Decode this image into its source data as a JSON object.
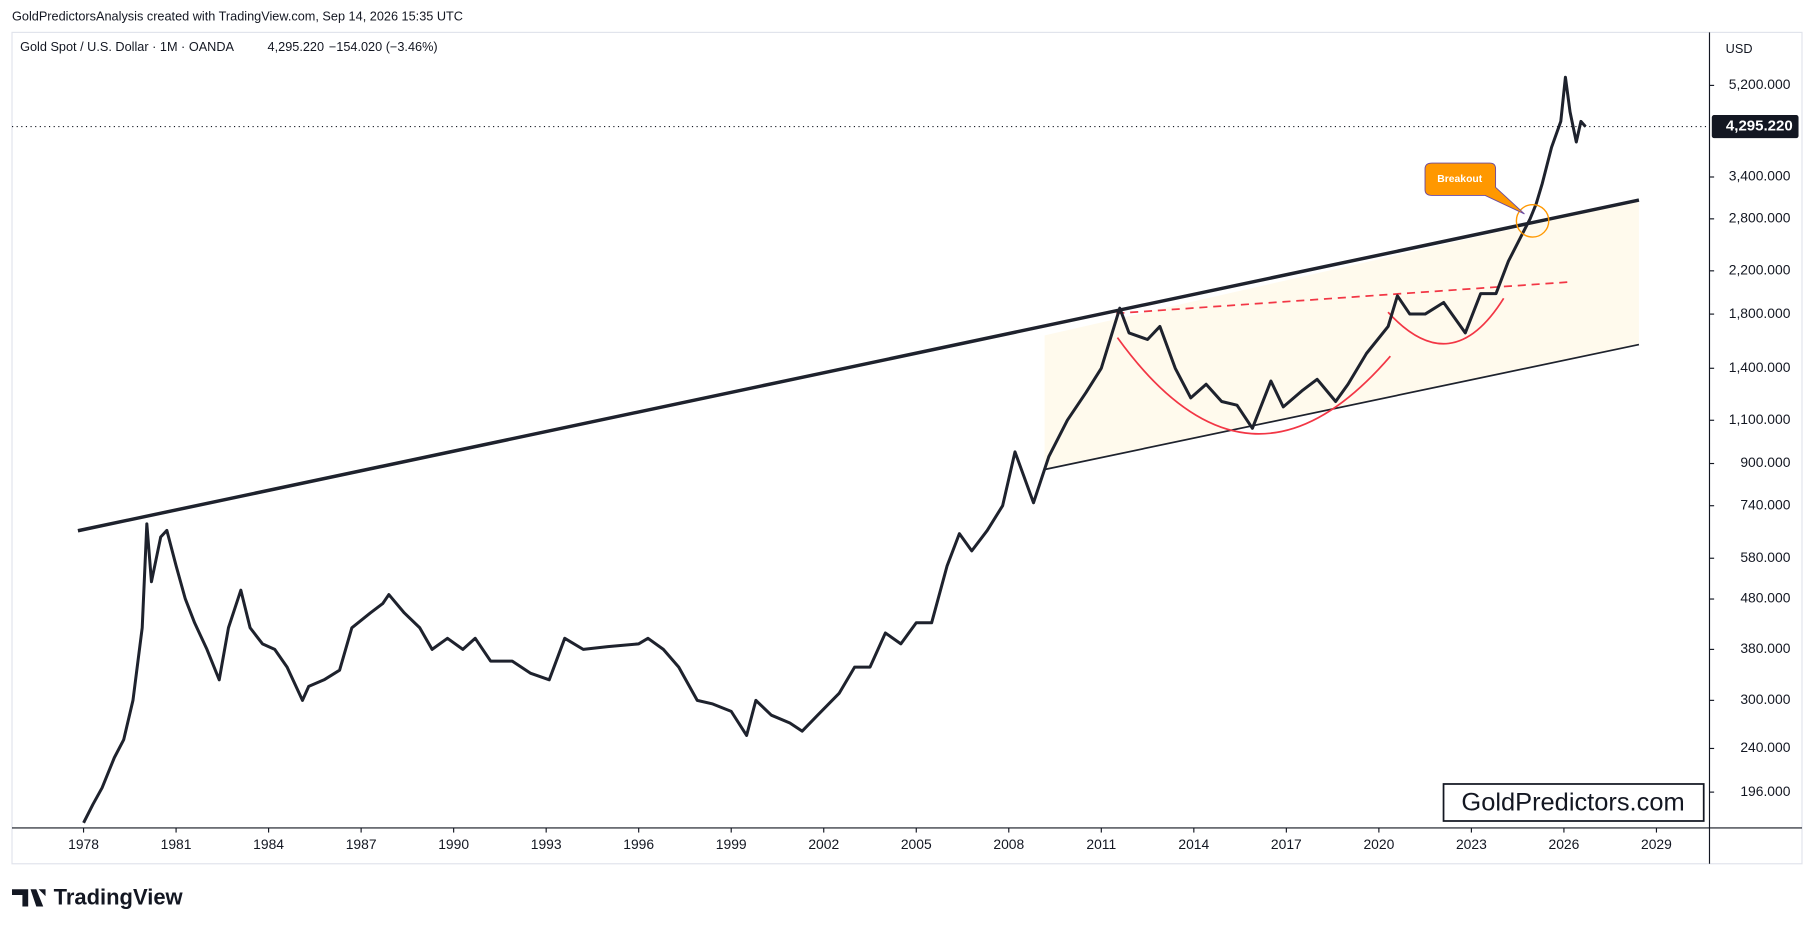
{
  "chart_data": {
    "type": "line",
    "attribution": "GoldPredictorsAnalysis created with TradingView.com, Sep 14, 2026 15:35 UTC",
    "title": "Gold Spot / U.S. Dollar · 1M · OANDA",
    "last_price": {
      "value": 4295.22,
      "label": "4,295.220"
    },
    "change": "−154.020 (−3.46%)",
    "currency": "USD",
    "annotation": "Breakout",
    "watermark": "GoldPredictors.com",
    "brand": "TradingView",
    "color": "#1e222d",
    "log_scale": true,
    "x": [
      1978.0,
      1978.3,
      1978.6,
      1979.0,
      1979.3,
      1979.6,
      1979.9,
      1980.05,
      1980.2,
      1980.5,
      1980.7,
      1981.0,
      1981.3,
      1981.6,
      1982.0,
      1982.4,
      1982.7,
      1983.1,
      1983.4,
      1983.8,
      1984.2,
      1984.6,
      1985.1,
      1985.3,
      1985.8,
      1986.3,
      1986.7,
      1987.3,
      1987.7,
      1987.9,
      1988.4,
      1988.9,
      1989.3,
      1989.8,
      1990.3,
      1990.7,
      1991.2,
      1991.9,
      1992.5,
      1993.1,
      1993.6,
      1994.2,
      1995.0,
      1996.0,
      1996.3,
      1996.8,
      1997.3,
      1997.9,
      1998.4,
      1999.0,
      1999.5,
      1999.8,
      2000.3,
      2000.9,
      2001.3,
      2001.8,
      2002.5,
      2003.0,
      2003.5,
      2004.0,
      2004.5,
      2005.0,
      2005.5,
      2006.0,
      2006.4,
      2006.8,
      2007.3,
      2007.8,
      2008.2,
      2008.8,
      2009.3,
      2009.9,
      2010.5,
      2011.0,
      2011.6,
      2011.9,
      2012.5,
      2012.9,
      2013.4,
      2013.9,
      2014.4,
      2014.9,
      2015.4,
      2015.9,
      2016.5,
      2016.9,
      2017.5,
      2018.0,
      2018.6,
      2019.0,
      2019.6,
      2020.3,
      2020.6,
      2021.0,
      2021.5,
      2022.1,
      2022.8,
      2023.3,
      2023.8,
      2024.2,
      2024.9,
      2025.1,
      2025.3,
      2025.6,
      2025.9,
      2026.05,
      2026.2,
      2026.4,
      2026.55,
      2026.7
    ],
    "values": [
      170,
      185,
      200,
      230,
      250,
      300,
      420,
      680,
      520,
      640,
      660,
      560,
      480,
      430,
      380,
      330,
      420,
      500,
      420,
      390,
      380,
      350,
      300,
      320,
      330,
      345,
      420,
      450,
      470,
      490,
      450,
      420,
      380,
      400,
      380,
      400,
      360,
      360,
      340,
      330,
      400,
      380,
      385,
      390,
      400,
      380,
      350,
      300,
      295,
      285,
      255,
      300,
      280,
      270,
      260,
      280,
      310,
      350,
      350,
      410,
      390,
      430,
      430,
      560,
      650,
      600,
      660,
      740,
      950,
      750,
      930,
      1100,
      1250,
      1400,
      1850,
      1650,
      1600,
      1700,
      1400,
      1220,
      1300,
      1200,
      1180,
      1060,
      1320,
      1170,
      1260,
      1330,
      1200,
      1300,
      1500,
      1700,
      1960,
      1800,
      1800,
      1900,
      1650,
      1980,
      1980,
      2300,
      2800,
      3000,
      3300,
      3900,
      4400,
      5400,
      4600,
      4000,
      4400,
      4295.22
    ],
    "xlim": [
      1975.68,
      2030.72
    ],
    "xticks": [
      1978,
      1981,
      1984,
      1987,
      1990,
      1993,
      1996,
      1999,
      2002,
      2005,
      2008,
      2011,
      2014,
      2017,
      2020,
      2023,
      2026,
      2029
    ],
    "ylim": [
      166,
      6650
    ],
    "yticks": [
      {
        "value": 196,
        "label": "196.000"
      },
      {
        "value": 240,
        "label": "240.000"
      },
      {
        "value": 300,
        "label": "300.000"
      },
      {
        "value": 380,
        "label": "380.000"
      },
      {
        "value": 480,
        "label": "480.000"
      },
      {
        "value": 580,
        "label": "580.000"
      },
      {
        "value": 740,
        "label": "740.000"
      },
      {
        "value": 900,
        "label": "900.000"
      },
      {
        "value": 1100,
        "label": "1,100.000"
      },
      {
        "value": 1400,
        "label": "1,400.000"
      },
      {
        "value": 1800,
        "label": "1,800.000"
      },
      {
        "value": 2200,
        "label": "2,200.000"
      },
      {
        "value": 2800,
        "label": "2,800.000"
      },
      {
        "value": 3400,
        "label": "3,400.000"
      },
      {
        "value": 5200,
        "label": "5,200.000"
      }
    ]
  }
}
